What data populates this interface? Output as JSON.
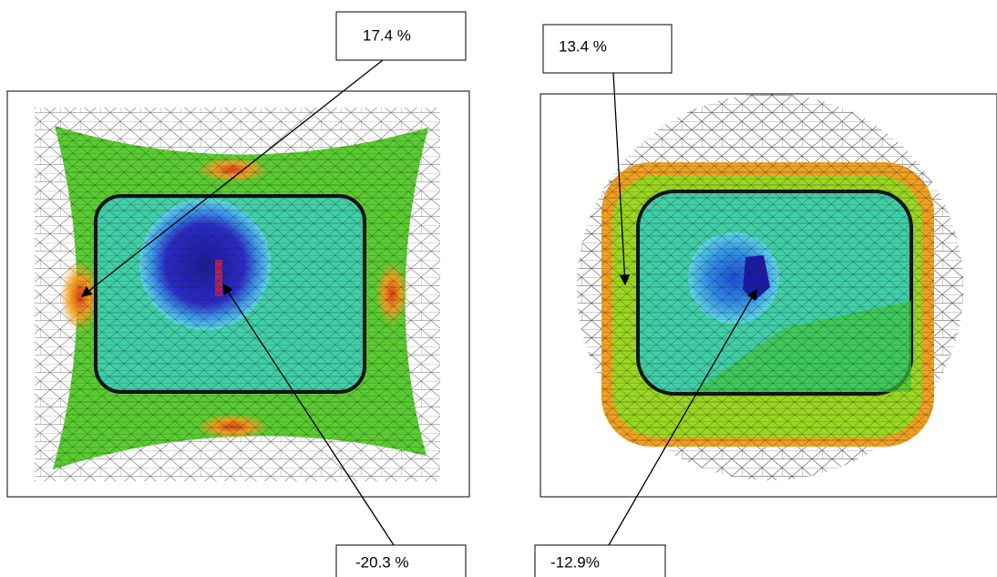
{
  "panels": [
    {
      "max_label": "17.4 %",
      "min_label": "-20.3 %"
    },
    {
      "max_label": "13.4 %",
      "min_label": "-12.9%"
    }
  ]
}
